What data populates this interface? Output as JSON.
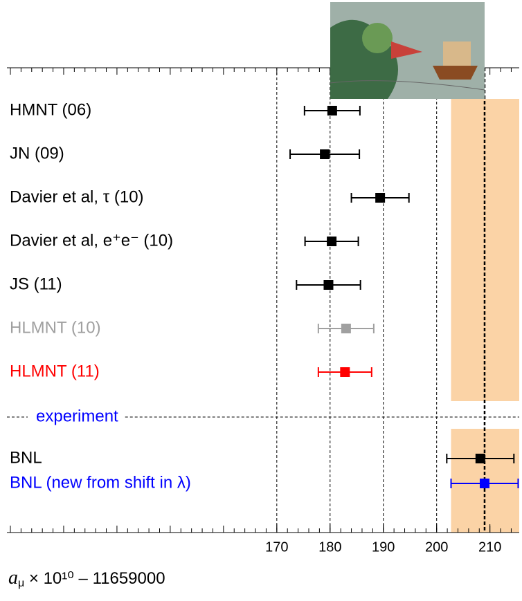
{
  "chart_data": {
    "type": "forest",
    "xlim": [
      120,
      215.5
    ],
    "xticks": [
      170,
      180,
      190,
      200,
      210
    ],
    "minor_tick_step": 2,
    "grid_xticks": [
      170,
      180,
      190,
      200
    ],
    "reference_line": 209,
    "band": [
      202.7,
      215.5
    ],
    "band_color": "#fbd3a6",
    "x_label_symbol": "a",
    "x_label_subscript": "μ",
    "x_label_rest": " × 10¹⁰ – 11659000",
    "groups": [
      {
        "categories": [
          "HMNT (06)",
          "JN (09)",
          "Davier et al, τ (10)",
          "Davier et al, e⁺e⁻ (10)",
          "JS (11)",
          "HLMNT (10)",
          "HLMNT (11)"
        ],
        "values": [
          180.4,
          179.0,
          189.4,
          180.3,
          179.7,
          183.0,
          182.8
        ],
        "errors": [
          5.2,
          6.5,
          5.4,
          5.0,
          6.0,
          5.2,
          5.0
        ],
        "colors": [
          "#000000",
          "#000000",
          "#000000",
          "#000000",
          "#000000",
          "#a0a0a0",
          "#ff0000"
        ]
      },
      {
        "name": "experiment",
        "categories": [
          "BNL",
          "BNL (new from shift in λ)"
        ],
        "values": [
          208.2,
          209.0
        ],
        "errors": [
          6.3,
          6.3
        ],
        "colors": [
          "#000000",
          "#0000ff"
        ]
      }
    ]
  }
}
